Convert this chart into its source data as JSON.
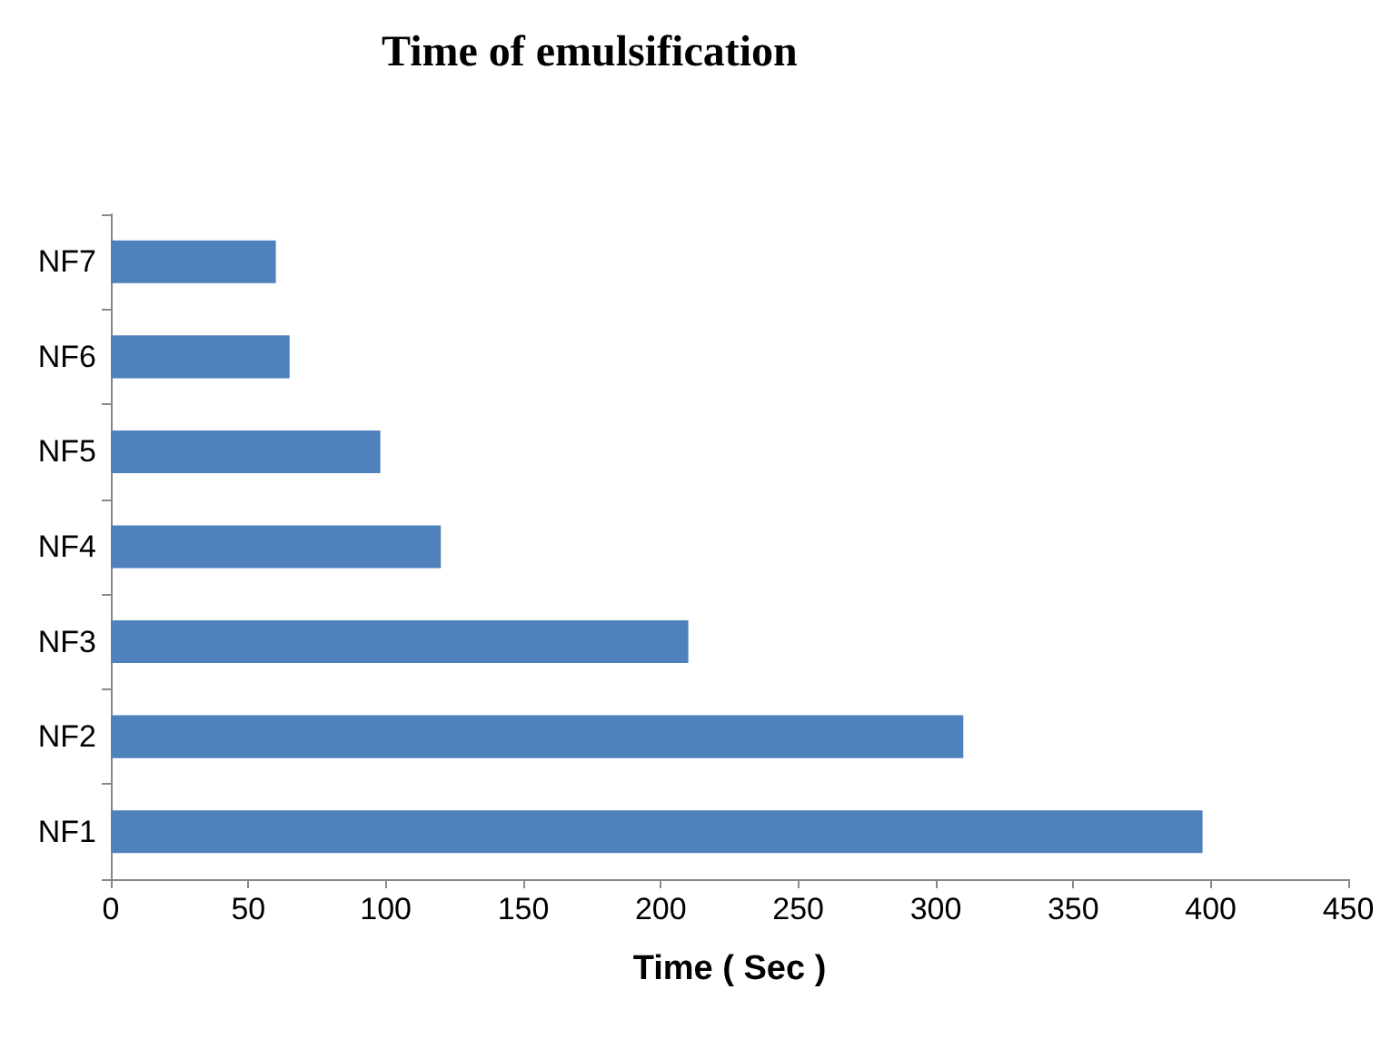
{
  "chart_data": {
    "type": "bar",
    "orientation": "horizontal",
    "title": "Time of emulsification",
    "xlabel": "Time ( Sec )",
    "categories": [
      "NF7",
      "NF6",
      "NF5",
      "NF4",
      "NF3",
      "NF2",
      "NF1"
    ],
    "values": [
      60,
      65,
      98,
      120,
      210,
      310,
      397
    ],
    "color": "#4f81bd",
    "xlim": [
      0,
      450
    ],
    "xticks": [
      0,
      50,
      100,
      150,
      200,
      250,
      300,
      350,
      400,
      450
    ],
    "grid": false
  }
}
